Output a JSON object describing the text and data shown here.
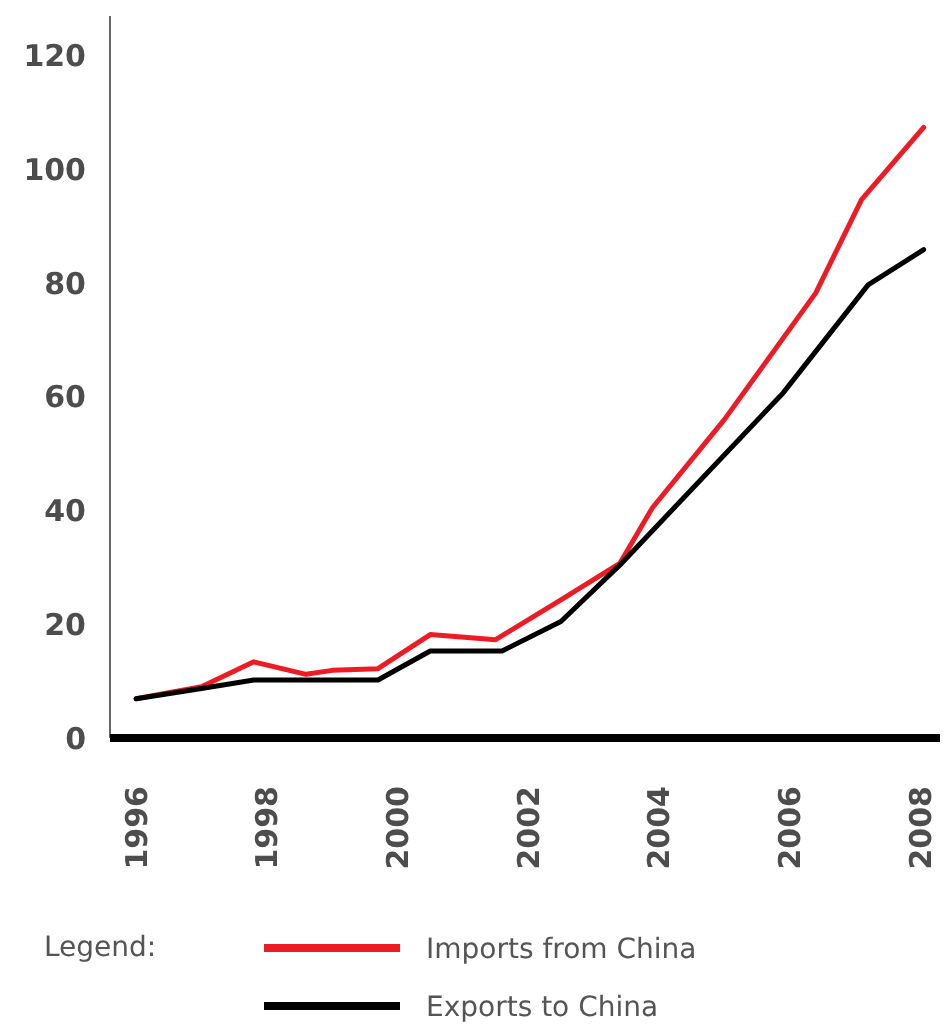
{
  "chart_data": {
    "type": "line",
    "xlim": [
      1995.6,
      2008.3
    ],
    "ylim": [
      0,
      127
    ],
    "xticks": [
      1996,
      1998,
      2000,
      2002,
      2004,
      2006,
      2008
    ],
    "yticks": [
      0,
      20,
      40,
      60,
      80,
      100,
      120
    ],
    "grid": false,
    "legend": "bottom",
    "legend_title": "Legend:",
    "marker": "none",
    "line_style": "solid",
    "series": [
      {
        "name": "Imports from China",
        "color": "#ed1c24",
        "x": [
          1996,
          1997,
          1997.8,
          1998.6,
          1999,
          1999.7,
          2000.5,
          2001.5,
          2002.5,
          2003.4,
          2003.9,
          2005,
          2006.4,
          2007.1,
          2008.05
        ],
        "values": [
          6.9,
          9,
          13.4,
          11.2,
          11.9,
          12.2,
          18.2,
          17.3,
          24.3,
          30.7,
          40.5,
          56,
          78.3,
          94.7,
          107.4
        ]
      },
      {
        "name": "Exports to China",
        "color": "#000000",
        "x": [
          1996,
          1997,
          1997.8,
          1999.7,
          2000.5,
          2001.6,
          2002.5,
          2003.4,
          2005.9,
          2007.2,
          2008.05
        ],
        "values": [
          6.9,
          8.7,
          10.2,
          10.2,
          15.3,
          15.3,
          20.5,
          30.4,
          60.7,
          79.7,
          85.9
        ]
      }
    ]
  }
}
